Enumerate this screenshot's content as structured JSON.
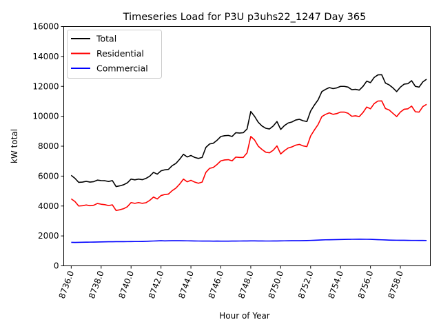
{
  "chart_data": {
    "type": "line",
    "title": "Timeseries Load for P3U p3uhs22_1247  Day 365",
    "xlabel": "Hour of Year",
    "ylabel": "kW total",
    "xlim": [
      8735.5,
      8760.0
    ],
    "ylim": [
      0,
      16000
    ],
    "xticks": [
      8736,
      8738,
      8740,
      8742,
      8744,
      8746,
      8748,
      8750,
      8752,
      8754,
      8756,
      8758
    ],
    "xtick_labels": [
      "8736.0",
      "8738.0",
      "8740.0",
      "8742.0",
      "8744.0",
      "8746.0",
      "8748.0",
      "8750.0",
      "8752.0",
      "8754.0",
      "8756.0",
      "8758.0"
    ],
    "yticks": [
      0,
      2000,
      4000,
      6000,
      8000,
      10000,
      12000,
      14000,
      16000
    ],
    "ytick_labels": [
      "0",
      "2000",
      "4000",
      "6000",
      "8000",
      "10000",
      "12000",
      "14000",
      "16000"
    ],
    "grid": false,
    "legend_position": "top-left",
    "x_start": 8736,
    "x_step": 0.25,
    "series": [
      {
        "name": "Total",
        "color": "#000000",
        "values": [
          6050,
          5850,
          5580,
          5600,
          5650,
          5600,
          5630,
          5730,
          5700,
          5690,
          5640,
          5700,
          5300,
          5350,
          5420,
          5550,
          5800,
          5750,
          5800,
          5760,
          5850,
          6000,
          6250,
          6130,
          6350,
          6420,
          6450,
          6700,
          6850,
          7130,
          7460,
          7280,
          7380,
          7250,
          7180,
          7250,
          7920,
          8150,
          8200,
          8400,
          8650,
          8700,
          8720,
          8650,
          8900,
          8880,
          8900,
          9150,
          10320,
          10000,
          9600,
          9350,
          9200,
          9150,
          9350,
          9650,
          9120,
          9380,
          9550,
          9620,
          9750,
          9800,
          9700,
          9650,
          10350,
          10750,
          11100,
          11650,
          11800,
          11920,
          11850,
          11900,
          12000,
          12000,
          11950,
          11780,
          11800,
          11750,
          12000,
          12350,
          12250,
          12600,
          12770,
          12780,
          12220,
          12100,
          11900,
          11650,
          11950,
          12150,
          12180,
          12380,
          12000,
          11950,
          12300,
          12480
        ]
      },
      {
        "name": "Residential",
        "color": "#ff0000",
        "values": [
          4480,
          4300,
          4000,
          4020,
          4070,
          4020,
          4050,
          4170,
          4120,
          4090,
          4030,
          4080,
          3700,
          3750,
          3820,
          3950,
          4230,
          4180,
          4230,
          4180,
          4220,
          4380,
          4600,
          4470,
          4700,
          4770,
          4800,
          5030,
          5200,
          5470,
          5800,
          5620,
          5720,
          5600,
          5520,
          5600,
          6250,
          6520,
          6580,
          6780,
          7020,
          7080,
          7100,
          7020,
          7270,
          7250,
          7250,
          7550,
          8650,
          8420,
          8000,
          7780,
          7600,
          7560,
          7730,
          8020,
          7480,
          7700,
          7880,
          7950,
          8070,
          8120,
          8020,
          7970,
          8680,
          9080,
          9450,
          9980,
          10130,
          10230,
          10130,
          10180,
          10280,
          10280,
          10200,
          10000,
          10030,
          9980,
          10250,
          10620,
          10500,
          10850,
          11020,
          11030,
          10520,
          10420,
          10200,
          9980,
          10280,
          10470,
          10500,
          10680,
          10300,
          10280,
          10650,
          10800
        ]
      },
      {
        "name": "Commercial",
        "color": "#0000ff",
        "values": [
          1570,
          1565,
          1570,
          1575,
          1580,
          1585,
          1590,
          1595,
          1600,
          1605,
          1610,
          1612,
          1615,
          1615,
          1618,
          1620,
          1622,
          1625,
          1625,
          1630,
          1640,
          1650,
          1660,
          1670,
          1680,
          1670,
          1675,
          1680,
          1680,
          1678,
          1675,
          1672,
          1670,
          1665,
          1660,
          1658,
          1655,
          1655,
          1650,
          1655,
          1652,
          1650,
          1652,
          1655,
          1658,
          1660,
          1662,
          1665,
          1670,
          1668,
          1665,
          1662,
          1660,
          1660,
          1662,
          1665,
          1670,
          1672,
          1675,
          1678,
          1680,
          1682,
          1685,
          1690,
          1700,
          1710,
          1720,
          1730,
          1740,
          1745,
          1750,
          1755,
          1760,
          1765,
          1770,
          1775,
          1780,
          1785,
          1780,
          1775,
          1770,
          1760,
          1750,
          1740,
          1730,
          1720,
          1715,
          1712,
          1710,
          1708,
          1705,
          1700,
          1700,
          1698,
          1698,
          1695
        ]
      }
    ]
  }
}
